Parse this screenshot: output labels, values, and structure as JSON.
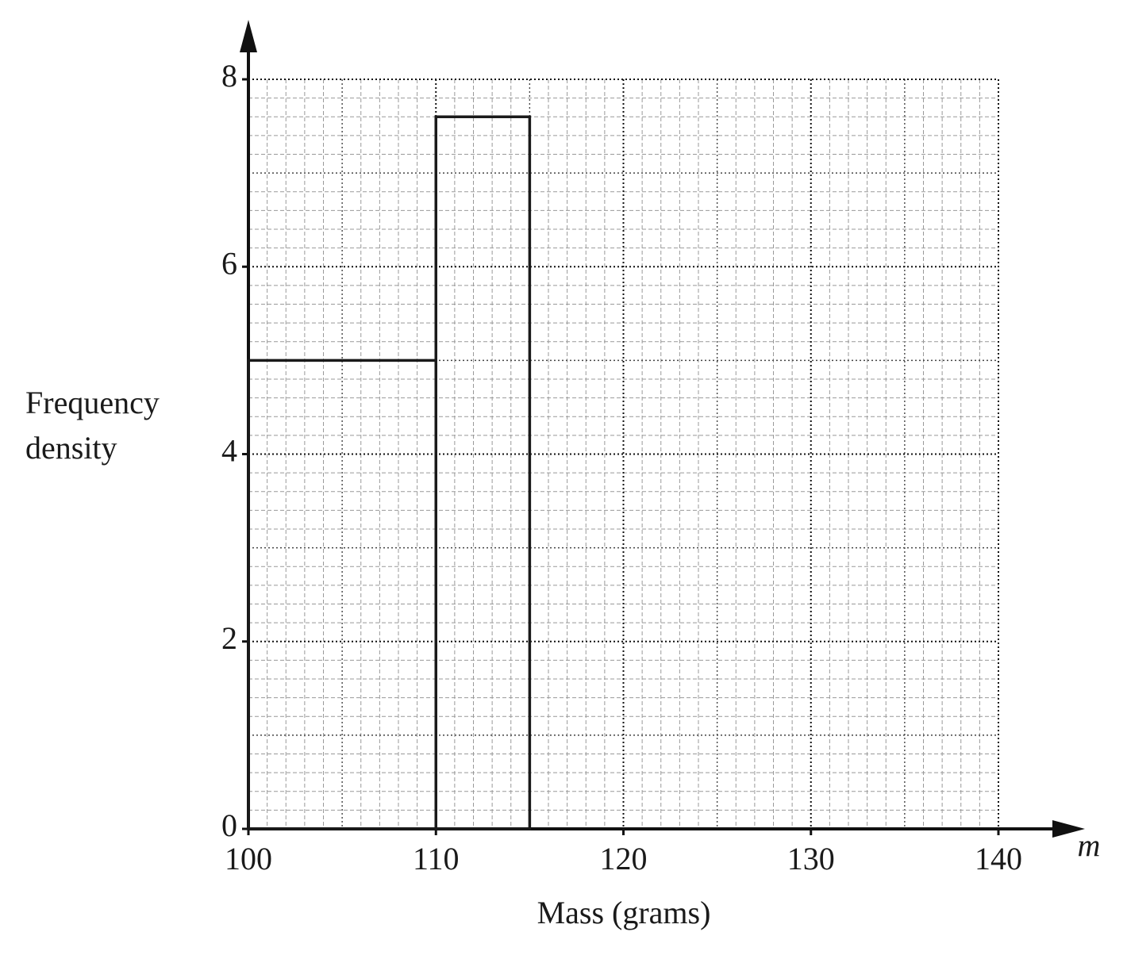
{
  "chart_data": {
    "type": "histogram",
    "bins": [
      100,
      110,
      115
    ],
    "values": [
      5,
      7.6
    ],
    "color": "#1a1a1a",
    "xlim": [
      100,
      140
    ],
    "ylim": [
      0,
      8
    ],
    "xticks": [
      100,
      110,
      120,
      130,
      140
    ],
    "yticks": [
      0,
      2,
      4,
      6,
      8
    ],
    "x_label": "Mass (grams)",
    "y_label": [
      "Frequency",
      "density"
    ],
    "x_variable": "m",
    "grid": true
  }
}
